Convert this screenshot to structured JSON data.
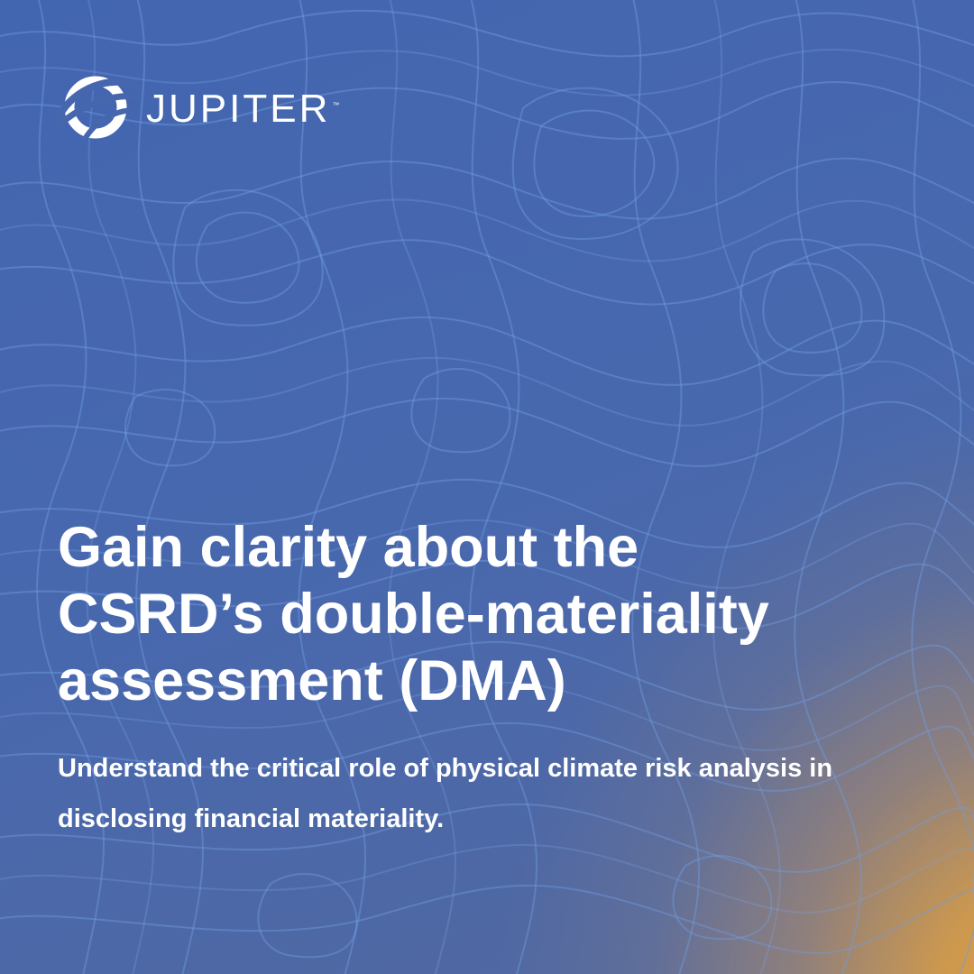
{
  "brand": {
    "name": "JUPITER",
    "trademark": "™",
    "logo_icon": "jupiter-orbit-logo-icon"
  },
  "headline": {
    "lines": [
      "Gain clarity about the",
      "CSRD’s double-materiality",
      "assessment (DMA)"
    ]
  },
  "subheadline": {
    "lines": [
      "Understand the critical role of physical climate risk analysis in",
      "disclosing financial materiality."
    ]
  },
  "colors": {
    "background_blue": "#4868ae",
    "accent_orange": "#e2a03a",
    "contour_lines": "#6f9be0",
    "text": "#ffffff"
  }
}
